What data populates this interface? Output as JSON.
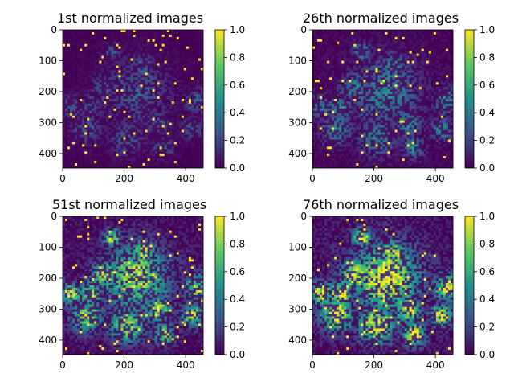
{
  "chart_data": [
    {
      "type": "heatmap",
      "title": "1st normalized images",
      "xlim": [
        0,
        457
      ],
      "ylim": [
        447,
        0
      ],
      "x_ticks": [
        "0",
        "200",
        "400"
      ],
      "y_ticks": [
        "0",
        "100",
        "200",
        "300",
        "400"
      ],
      "colorbar_ticks": [
        "0.0",
        "0.2",
        "0.4",
        "0.6",
        "0.8",
        "1.0"
      ],
      "colorbar_range": [
        0.0,
        1.0
      ],
      "colormap": "viridis",
      "mean_intensity": 0.08
    },
    {
      "type": "heatmap",
      "title": "26th normalized images",
      "xlim": [
        0,
        457
      ],
      "ylim": [
        447,
        0
      ],
      "x_ticks": [
        "0",
        "200",
        "400"
      ],
      "y_ticks": [
        "0",
        "100",
        "200",
        "300",
        "400"
      ],
      "colorbar_ticks": [
        "0.0",
        "0.2",
        "0.4",
        "0.6",
        "0.8",
        "1.0"
      ],
      "colorbar_range": [
        0.0,
        1.0
      ],
      "colormap": "viridis",
      "mean_intensity": 0.2
    },
    {
      "type": "heatmap",
      "title": "51st normalized images",
      "xlim": [
        0,
        457
      ],
      "ylim": [
        447,
        0
      ],
      "x_ticks": [
        "0",
        "200",
        "400"
      ],
      "y_ticks": [
        "0",
        "100",
        "200",
        "300",
        "400"
      ],
      "colorbar_ticks": [
        "0.0",
        "0.2",
        "0.4",
        "0.6",
        "0.8",
        "1.0"
      ],
      "colorbar_range": [
        0.0,
        1.0
      ],
      "colormap": "viridis",
      "mean_intensity": 0.45
    },
    {
      "type": "heatmap",
      "title": "76th normalized images",
      "xlim": [
        0,
        457
      ],
      "ylim": [
        447,
        0
      ],
      "x_ticks": [
        "0",
        "200",
        "400"
      ],
      "y_ticks": [
        "0",
        "100",
        "200",
        "300",
        "400"
      ],
      "colorbar_ticks": [
        "0.0",
        "0.2",
        "0.4",
        "0.6",
        "0.8",
        "1.0"
      ],
      "colorbar_range": [
        0.0,
        1.0
      ],
      "colormap": "viridis",
      "mean_intensity": 0.55
    }
  ],
  "colors": {
    "viridis_0": "#440154",
    "viridis_25": "#3b528b",
    "viridis_50": "#21918c",
    "viridis_75": "#5ec962",
    "viridis_100": "#fde725"
  }
}
